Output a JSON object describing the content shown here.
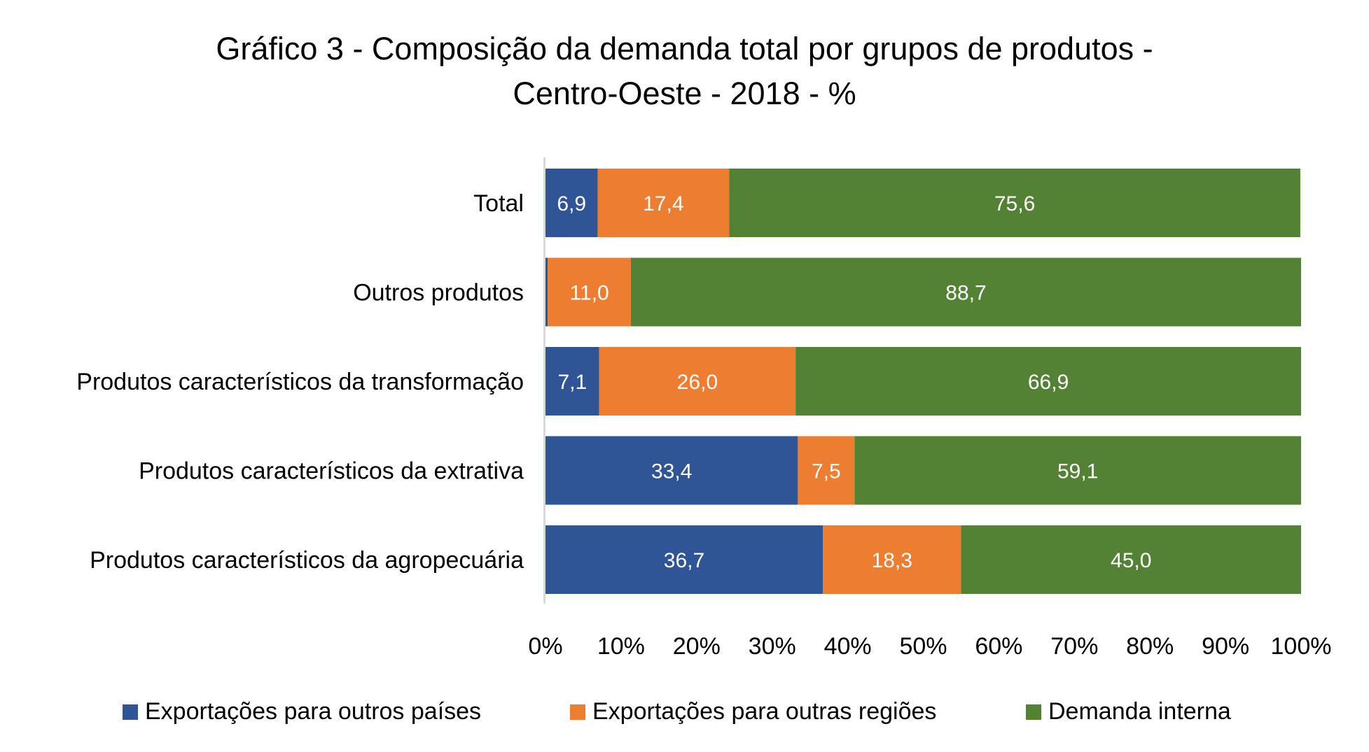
{
  "chart_data": {
    "type": "bar",
    "orientation": "horizontal",
    "stacked": "percent",
    "title": "Gráfico 3 - Composição da demanda total por grupos de produtos - Centro-Oeste - 2018 - %",
    "title_lines": [
      "Gráfico 3 - Composição da demanda total por grupos de produtos -",
      "Centro-Oeste - 2018 - %"
    ],
    "xlabel": "",
    "ylabel": "",
    "xlim": [
      0,
      100
    ],
    "x_ticks": [
      "0%",
      "10%",
      "20%",
      "30%",
      "40%",
      "50%",
      "60%",
      "70%",
      "80%",
      "90%",
      "100%"
    ],
    "grid": false,
    "legend_position": "bottom",
    "categories": [
      "Total",
      "Outros produtos",
      "Produtos característicos da transformação",
      "Produtos característicos da extrativa",
      "Produtos característicos da agropecuária"
    ],
    "series": [
      {
        "name": "Exportações para outros países",
        "color": "#2F5597",
        "values": [
          6.9,
          0.3,
          7.1,
          33.4,
          36.7
        ],
        "labels": [
          "6,9",
          "",
          "7,1",
          "33,4",
          "36,7"
        ]
      },
      {
        "name": "Exportações para outras regiões",
        "color": "#ED7D31",
        "values": [
          17.4,
          11.0,
          26.0,
          7.5,
          18.3
        ],
        "labels": [
          "17,4",
          "11,0",
          "26,0",
          "7,5",
          "18,3"
        ]
      },
      {
        "name": "Demanda interna",
        "color": "#548235",
        "values": [
          75.6,
          88.7,
          66.9,
          59.1,
          45.0
        ],
        "labels": [
          "75,6",
          "88,7",
          "66,9",
          "59,1",
          "45,0"
        ]
      }
    ]
  }
}
